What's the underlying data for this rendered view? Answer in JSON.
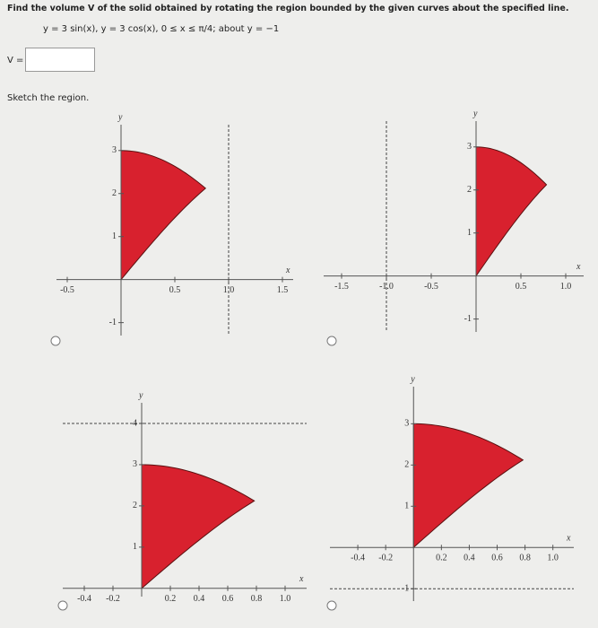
{
  "question": "Find the volume V of the solid obtained by rotating the region bounded by the given curves about the specified line.",
  "curves": "y = 3 sin(x),   y = 3 cos(x),   0 ≤ x ≤ π/4;   about y = −1",
  "answer_label": "V =",
  "sketch_prompt": "Sketch the region.",
  "options": [
    {
      "x_label": "x",
      "y_label": "y",
      "xlim": [
        -0.6,
        1.6
      ],
      "ylim": [
        -1.3,
        3.6
      ],
      "xticks": [
        -0.5,
        0.5,
        {
          "value": 1,
          "label": "1.0"
        },
        1.5
      ],
      "yticks": [
        -1,
        1,
        2,
        3
      ],
      "rotation_axis": {
        "orientation": "vertical",
        "value": 1
      }
    },
    {
      "x_label": "x",
      "y_label": "y",
      "xlim": [
        -1.7,
        1.2
      ],
      "ylim": [
        -1.3,
        3.6
      ],
      "xticks": [
        -1.5,
        {
          "value": -1,
          "label": "-1.0"
        },
        -0.5,
        0.5,
        {
          "value": 1,
          "label": "1.0"
        }
      ],
      "yticks": [
        -1,
        1,
        2,
        3
      ],
      "rotation_axis": {
        "orientation": "vertical",
        "value": -1
      }
    },
    {
      "x_label": "x",
      "y_label": "y",
      "xlim": [
        -0.55,
        1.15
      ],
      "ylim": [
        -0.2,
        4.5
      ],
      "xticks": [
        -0.4,
        -0.2,
        0.2,
        0.4,
        0.6,
        0.8,
        {
          "value": 1,
          "label": "1.0"
        }
      ],
      "yticks": [
        1,
        2,
        3,
        4
      ],
      "rotation_axis": {
        "orientation": "horizontal",
        "value": 4
      }
    },
    {
      "x_label": "x",
      "y_label": "y",
      "xlim": [
        -0.6,
        1.15
      ],
      "ylim": [
        -1.3,
        3.9
      ],
      "xticks": [
        -0.4,
        -0.2,
        0.2,
        0.4,
        0.6,
        0.8,
        {
          "value": 1,
          "label": "1.0"
        }
      ],
      "yticks": [
        -1,
        1,
        2,
        3
      ],
      "rotation_axis": {
        "orientation": "horizontal",
        "value": -1
      }
    }
  ]
}
